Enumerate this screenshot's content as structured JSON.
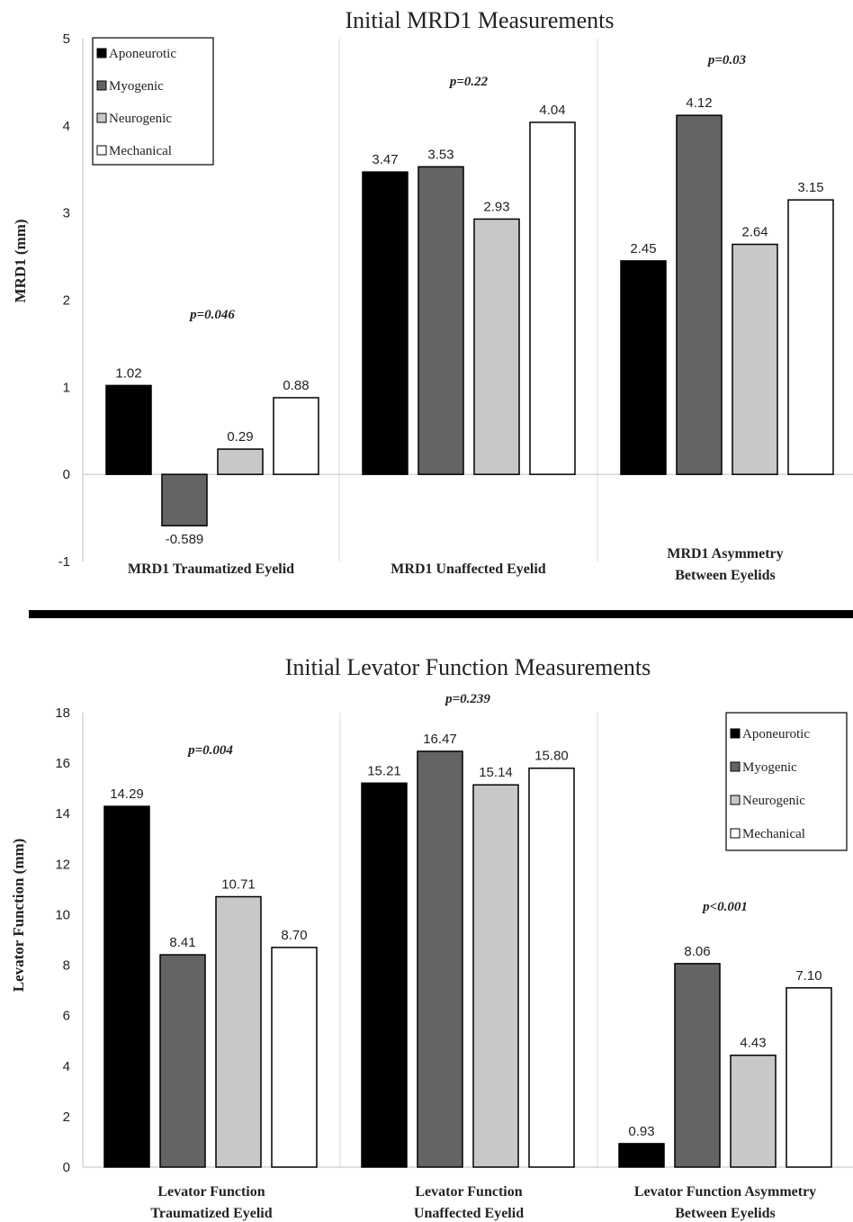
{
  "chart_data": [
    {
      "type": "bar",
      "title": "Initial MRD1 Measurements",
      "ylabel": "MRD1 (mm)",
      "ylim": [
        -1,
        5
      ],
      "yticks": [
        -1,
        0,
        1,
        2,
        3,
        4,
        5
      ],
      "grid": "vertical group separators",
      "legend_position": "top-left",
      "categories": [
        "MRD1 Traumatized Eyelid",
        "MRD1 Unaffected Eyelid",
        "MRD1 Asymmetry Between Eyelids"
      ],
      "category_lines": [
        [
          "MRD1 Traumatized Eyelid"
        ],
        [
          "MRD1 Unaffected Eyelid"
        ],
        [
          "MRD1 Asymmetry",
          "Between Eyelids"
        ]
      ],
      "pvalues": [
        "p=0.046",
        "p=0.22",
        "p=0.03"
      ],
      "series": [
        {
          "name": "Aponeurotic",
          "color": "#000000",
          "values": [
            1.02,
            3.47,
            2.45
          ],
          "labels": [
            "1.02",
            "3.47",
            "2.45"
          ]
        },
        {
          "name": "Myogenic",
          "color": "#646464",
          "values": [
            -0.589,
            3.53,
            4.12
          ],
          "labels": [
            "-0.589",
            "3.53",
            "4.12"
          ]
        },
        {
          "name": "Neurogenic",
          "color": "#c8c8c8",
          "values": [
            0.29,
            2.93,
            2.64
          ],
          "labels": [
            "0.29",
            "2.93",
            "2.64"
          ]
        },
        {
          "name": "Mechanical",
          "color": "#ffffff",
          "values": [
            0.88,
            4.04,
            3.15
          ],
          "labels": [
            "0.88",
            "4.04",
            "3.15"
          ]
        }
      ]
    },
    {
      "type": "bar",
      "title": "Initial Levator Function Measurements",
      "ylabel": "Levator Function (mm)",
      "ylim": [
        0,
        18
      ],
      "yticks": [
        0,
        2,
        4,
        6,
        8,
        10,
        12,
        14,
        16,
        18
      ],
      "grid": "vertical group separators",
      "legend_position": "top-right",
      "categories": [
        "Levator Function Traumatized Eyelid",
        "Levator Function Unaffected Eyelid",
        "Levator Function Asymmetry Between Eyelids"
      ],
      "category_lines": [
        [
          "Levator Function",
          "Traumatized Eyelid"
        ],
        [
          "Levator Function",
          "Unaffected Eyelid"
        ],
        [
          "Levator Function Asymmetry",
          "Between Eyelids"
        ]
      ],
      "pvalues": [
        "p=0.004",
        "p=0.239",
        "p<0.001"
      ],
      "series": [
        {
          "name": "Aponeurotic",
          "color": "#000000",
          "values": [
            14.29,
            15.21,
            0.93
          ],
          "labels": [
            "14.29",
            "15.21",
            "0.93"
          ]
        },
        {
          "name": "Myogenic",
          "color": "#646464",
          "values": [
            8.41,
            16.47,
            8.06
          ],
          "labels": [
            "8.41",
            "16.47",
            "8.06"
          ]
        },
        {
          "name": "Neurogenic",
          "color": "#c8c8c8",
          "values": [
            10.71,
            15.14,
            4.43
          ],
          "labels": [
            "10.71",
            "15.14",
            "4.43"
          ]
        },
        {
          "name": "Mechanical",
          "color": "#ffffff",
          "values": [
            8.7,
            15.8,
            7.1
          ],
          "labels": [
            "8.70",
            "15.80",
            "7.10"
          ]
        }
      ]
    }
  ]
}
